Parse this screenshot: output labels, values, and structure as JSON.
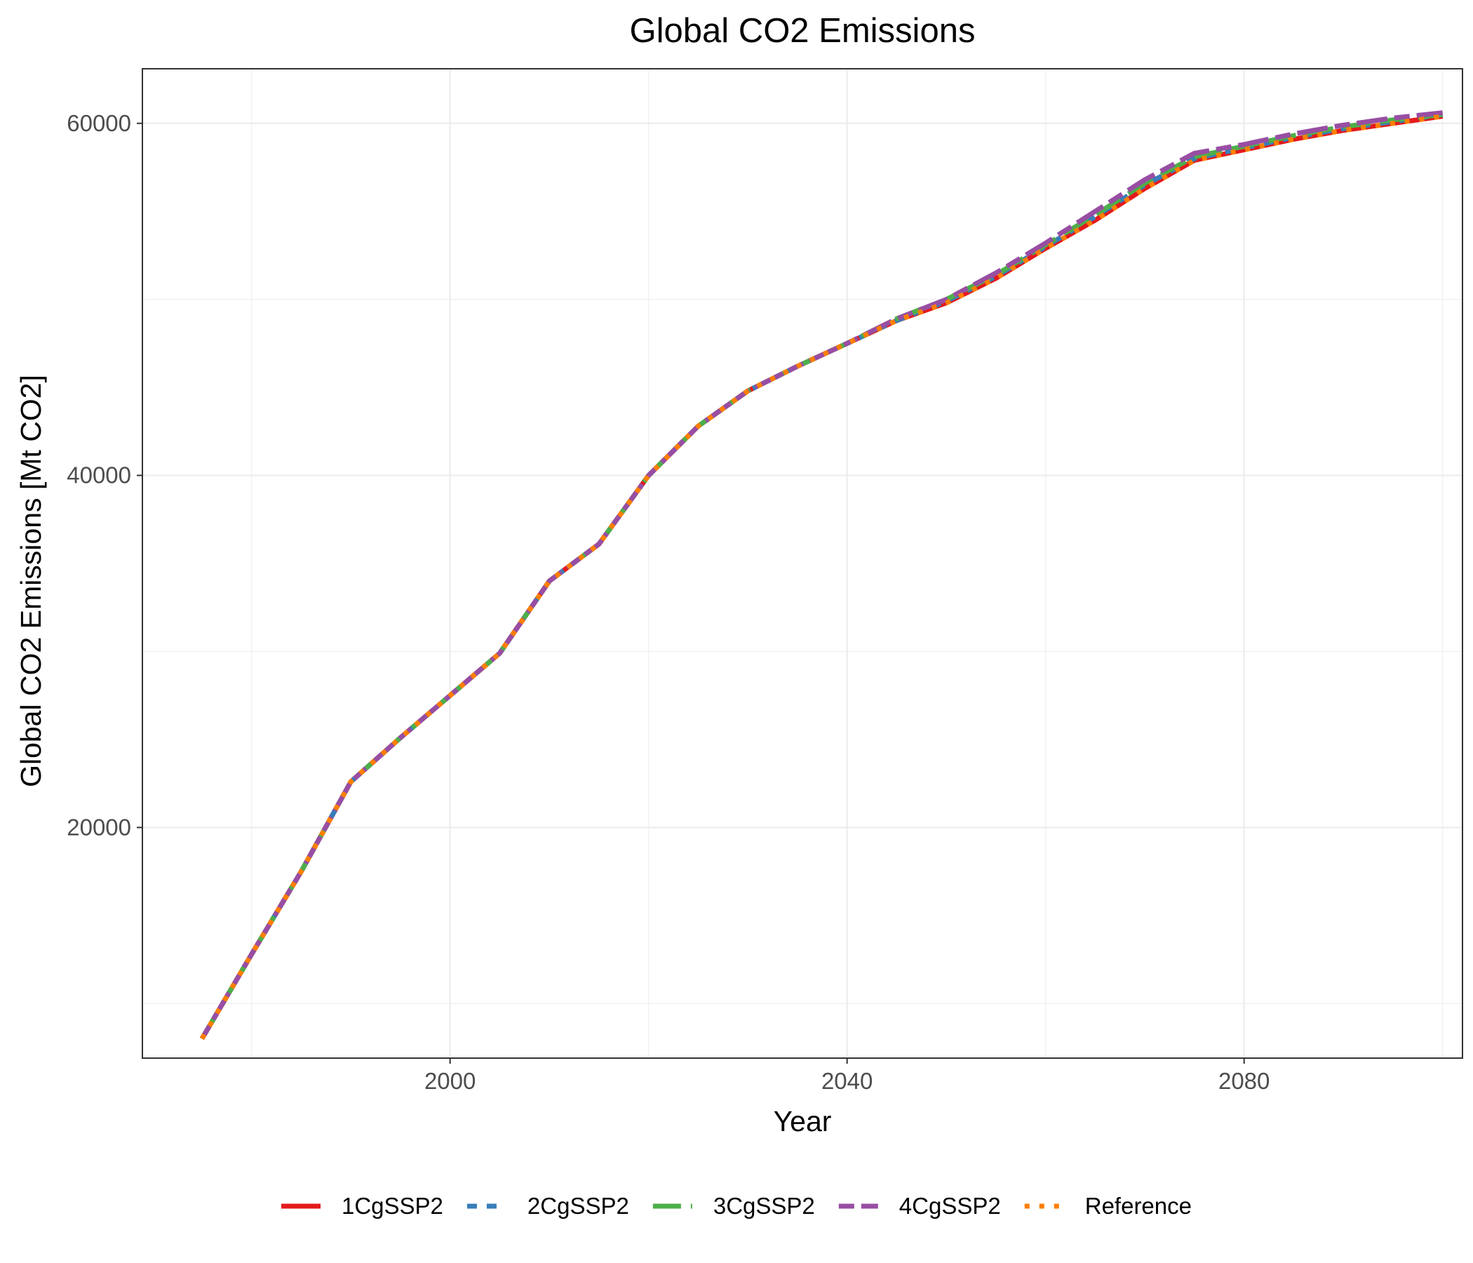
{
  "chart_data": {
    "type": "line",
    "title": "Global CO2 Emissions",
    "xlabel": "Year",
    "ylabel": "Global CO2 Emissions [Mt CO2]",
    "xlim": [
      1969,
      2102
    ],
    "ylim": [
      6900,
      63100
    ],
    "x_ticks": [
      2000,
      2040,
      2080
    ],
    "y_ticks": [
      20000,
      40000,
      60000
    ],
    "grid": true,
    "legend_position": "bottom",
    "x": [
      1975,
      1980,
      1985,
      1990,
      1995,
      2000,
      2005,
      2010,
      2015,
      2020,
      2025,
      2030,
      2035,
      2040,
      2045,
      2050,
      2055,
      2060,
      2065,
      2070,
      2075,
      2080,
      2085,
      2090,
      2095,
      2100
    ],
    "series": [
      {
        "name": "1CgSSP2",
        "color": "#e41a1c",
        "dash": "solid",
        "values": [
          8000,
          12800,
          17500,
          22600,
          25100,
          27500,
          29900,
          34000,
          36100,
          40000,
          42800,
          44800,
          46200,
          47500,
          48800,
          49800,
          51200,
          52900,
          54500,
          56300,
          57900,
          58500,
          59100,
          59600,
          60000,
          60400
        ]
      },
      {
        "name": "2CgSSP2",
        "color": "#377eb8",
        "dash": "dashed",
        "values": [
          8000,
          12800,
          17500,
          22600,
          25100,
          27500,
          29900,
          34000,
          36100,
          40000,
          42800,
          44800,
          46200,
          47500,
          48800,
          49900,
          51300,
          53000,
          54700,
          56500,
          58000,
          58600,
          59200,
          59700,
          60100,
          60500
        ]
      },
      {
        "name": "3CgSSP2",
        "color": "#4daf4a",
        "dash": "longdash",
        "values": [
          8000,
          12800,
          17500,
          22600,
          25100,
          27500,
          29900,
          34000,
          36100,
          40000,
          42800,
          44800,
          46200,
          47500,
          48900,
          50000,
          51400,
          53100,
          54800,
          56600,
          58100,
          58700,
          59300,
          59800,
          60200,
          60500
        ]
      },
      {
        "name": "4CgSSP2",
        "color": "#984ea3",
        "dash": "twodash",
        "values": [
          8000,
          12800,
          17500,
          22600,
          25100,
          27500,
          29900,
          34000,
          36100,
          40000,
          42800,
          44800,
          46200,
          47500,
          48900,
          50000,
          51500,
          53200,
          55000,
          56800,
          58300,
          58800,
          59400,
          59900,
          60300,
          60600
        ]
      },
      {
        "name": "Reference",
        "color": "#ff7f00",
        "dash": "dotted",
        "values": [
          8000,
          12800,
          17500,
          22600,
          25100,
          27500,
          29900,
          34000,
          36100,
          40000,
          42800,
          44800,
          46200,
          47500,
          48800,
          49800,
          51200,
          52900,
          54500,
          56300,
          57900,
          58500,
          59100,
          59600,
          60000,
          60400
        ]
      }
    ]
  }
}
